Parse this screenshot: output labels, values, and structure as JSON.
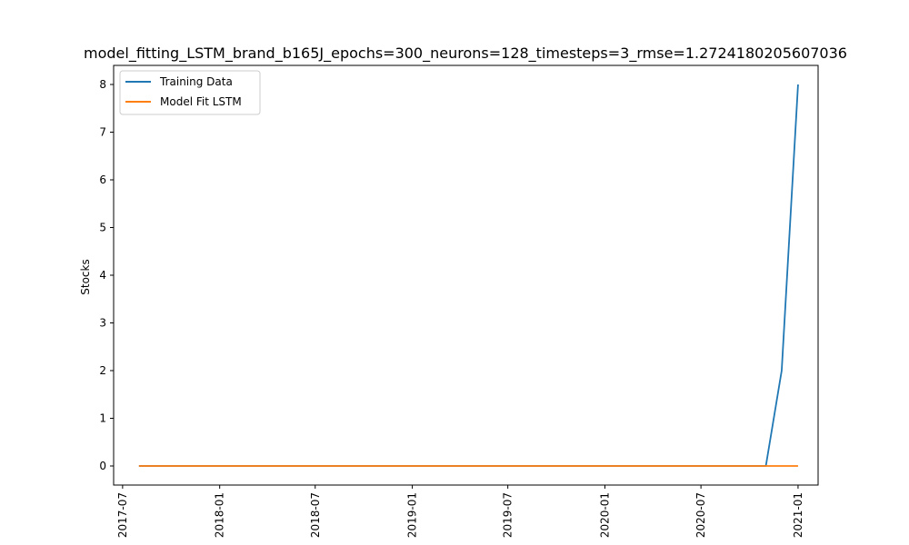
{
  "chart_data": {
    "type": "line",
    "title": "model_fitting_LSTM_brand_b165J_epochs=300_neurons=128_timesteps=3_rmse=1.2724180205607036",
    "xlabel": "",
    "ylabel": "Stocks",
    "xlim": [
      "2017-06-14",
      "2021-02-08"
    ],
    "ylim": [
      -0.4,
      8.4
    ],
    "x_ticks": [
      "2017-07",
      "2018-01",
      "2018-07",
      "2019-01",
      "2019-07",
      "2020-01",
      "2020-07",
      "2021-01"
    ],
    "y_ticks": [
      0,
      1,
      2,
      3,
      4,
      5,
      6,
      7,
      8
    ],
    "grid": false,
    "legend_position": "top-left",
    "series": [
      {
        "name": "Training Data",
        "color": "#1f77b4",
        "points": [
          {
            "x": "2017-08-01",
            "y": 0
          },
          {
            "x": "2020-11-01",
            "y": 0
          },
          {
            "x": "2020-12-01",
            "y": 2
          },
          {
            "x": "2021-01-01",
            "y": 8
          }
        ]
      },
      {
        "name": "Model Fit LSTM",
        "color": "#ff7f0e",
        "points": [
          {
            "x": "2017-08-01",
            "y": 0
          },
          {
            "x": "2021-01-01",
            "y": 0
          }
        ]
      }
    ]
  }
}
